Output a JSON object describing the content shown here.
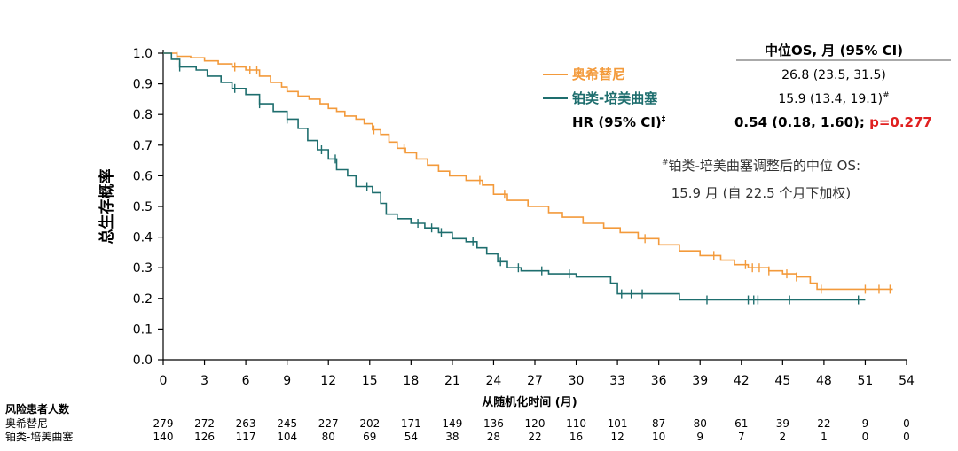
{
  "chart_data": {
    "type": "line",
    "chart_kind": "kaplan-meier",
    "ylabel": "总生存概率",
    "xlabel": "从随机化时间 (月)",
    "xlim": [
      0,
      54
    ],
    "ylim": [
      0,
      1.0
    ],
    "x_ticks": [
      0,
      3,
      6,
      9,
      12,
      15,
      18,
      21,
      24,
      27,
      30,
      33,
      36,
      39,
      42,
      45,
      48,
      51,
      54
    ],
    "y_ticks": [
      "0.0",
      "0.1",
      "0.2",
      "0.3",
      "0.4",
      "0.5",
      "0.6",
      "0.7",
      "0.8",
      "0.9",
      "1.0"
    ],
    "grid": false,
    "legend_header": "中位OS, 月 (95% CI)",
    "series": [
      {
        "name": "奥希替尼",
        "color": "#F39A3B",
        "median_text": "26.8 (23.5, 31.5)",
        "x": [
          0,
          1.0,
          2.0,
          3.0,
          4.0,
          5.0,
          6.0,
          7.0,
          7.8,
          8.6,
          9.0,
          9.8,
          10.6,
          11.4,
          12.0,
          12.6,
          13.2,
          14.0,
          14.6,
          15.2,
          15.8,
          16.4,
          17.0,
          17.6,
          18.4,
          19.2,
          20.0,
          20.8,
          22.0,
          23.2,
          24.0,
          25.0,
          26.5,
          28.0,
          29.0,
          30.5,
          32.0,
          33.2,
          34.5,
          36.0,
          37.5,
          39.0,
          40.5,
          41.5,
          42.5,
          44.0,
          45.0,
          46.0,
          47.0,
          47.5,
          53.0
        ],
        "y": [
          1.0,
          0.99,
          0.985,
          0.975,
          0.965,
          0.955,
          0.945,
          0.925,
          0.905,
          0.89,
          0.875,
          0.86,
          0.85,
          0.835,
          0.82,
          0.81,
          0.795,
          0.785,
          0.77,
          0.75,
          0.735,
          0.71,
          0.69,
          0.675,
          0.655,
          0.635,
          0.615,
          0.6,
          0.585,
          0.57,
          0.54,
          0.52,
          0.5,
          0.48,
          0.465,
          0.445,
          0.43,
          0.415,
          0.395,
          0.375,
          0.355,
          0.34,
          0.325,
          0.31,
          0.3,
          0.29,
          0.28,
          0.27,
          0.25,
          0.23,
          0.23
        ],
        "censored_x": [
          1.0,
          5.2,
          6.3,
          6.8,
          15.3,
          17.5,
          23.0,
          24.8,
          35.0,
          40.0,
          42.3,
          42.8,
          43.3,
          44.0,
          45.3,
          46.0,
          47.8,
          51.0,
          52.0,
          52.8
        ]
      },
      {
        "name": "铂类-培美曲塞",
        "color": "#1E6E6E",
        "median_text": "15.9 (13.4, 19.1)",
        "median_footnote_mark": "#",
        "x": [
          0,
          0.6,
          1.2,
          2.4,
          3.2,
          4.2,
          5.0,
          6.0,
          7.0,
          8.0,
          9.0,
          9.8,
          10.5,
          11.2,
          12.0,
          12.6,
          13.4,
          14.0,
          15.2,
          15.8,
          16.2,
          17.0,
          18.0,
          19.0,
          20.0,
          21.0,
          22.0,
          22.8,
          23.5,
          24.3,
          25.0,
          26.0,
          28.0,
          30.0,
          32.5,
          33.0,
          37.5,
          51.0
        ],
        "y": [
          1.0,
          0.98,
          0.955,
          0.945,
          0.925,
          0.905,
          0.885,
          0.865,
          0.835,
          0.81,
          0.785,
          0.755,
          0.715,
          0.685,
          0.655,
          0.62,
          0.6,
          0.565,
          0.545,
          0.51,
          0.475,
          0.46,
          0.445,
          0.43,
          0.415,
          0.395,
          0.385,
          0.365,
          0.345,
          0.32,
          0.3,
          0.29,
          0.28,
          0.27,
          0.25,
          0.215,
          0.195,
          0.195
        ],
        "censored_x": [
          1.2,
          5.2,
          7.0,
          9.0,
          11.5,
          12.5,
          14.8,
          18.5,
          19.5,
          20.2,
          22.5,
          24.5,
          25.8,
          27.5,
          29.5,
          33.3,
          34.0,
          34.8,
          39.5,
          42.5,
          42.9,
          43.2,
          45.5,
          50.5
        ]
      }
    ],
    "hr_label": "HR (95% CI)",
    "hr_label_mark": "‡",
    "hr_value": "0.54 (0.18, 1.60);",
    "p_value": "p=0.277",
    "p_color": "#E02020",
    "footnote_mark": "#",
    "footnote_line1": "铂类-培美曲塞调整后的中位 OS:",
    "footnote_line2": "15.9 月 (自 22.5 个月下加权)"
  },
  "risk_table": {
    "title": "风险患者人数",
    "rows": [
      {
        "label": "奥希替尼",
        "values": [
          "279",
          "272",
          "263",
          "245",
          "227",
          "202",
          "171",
          "149",
          "136",
          "120",
          "110",
          "101",
          "87",
          "80",
          "61",
          "39",
          "22",
          "9",
          "0"
        ]
      },
      {
        "label": "铂类-培美曲塞",
        "values": [
          "140",
          "126",
          "117",
          "104",
          "80",
          "69",
          "54",
          "38",
          "28",
          "22",
          "16",
          "12",
          "10",
          "9",
          "7",
          "2",
          "1",
          "0",
          "0"
        ]
      }
    ]
  }
}
